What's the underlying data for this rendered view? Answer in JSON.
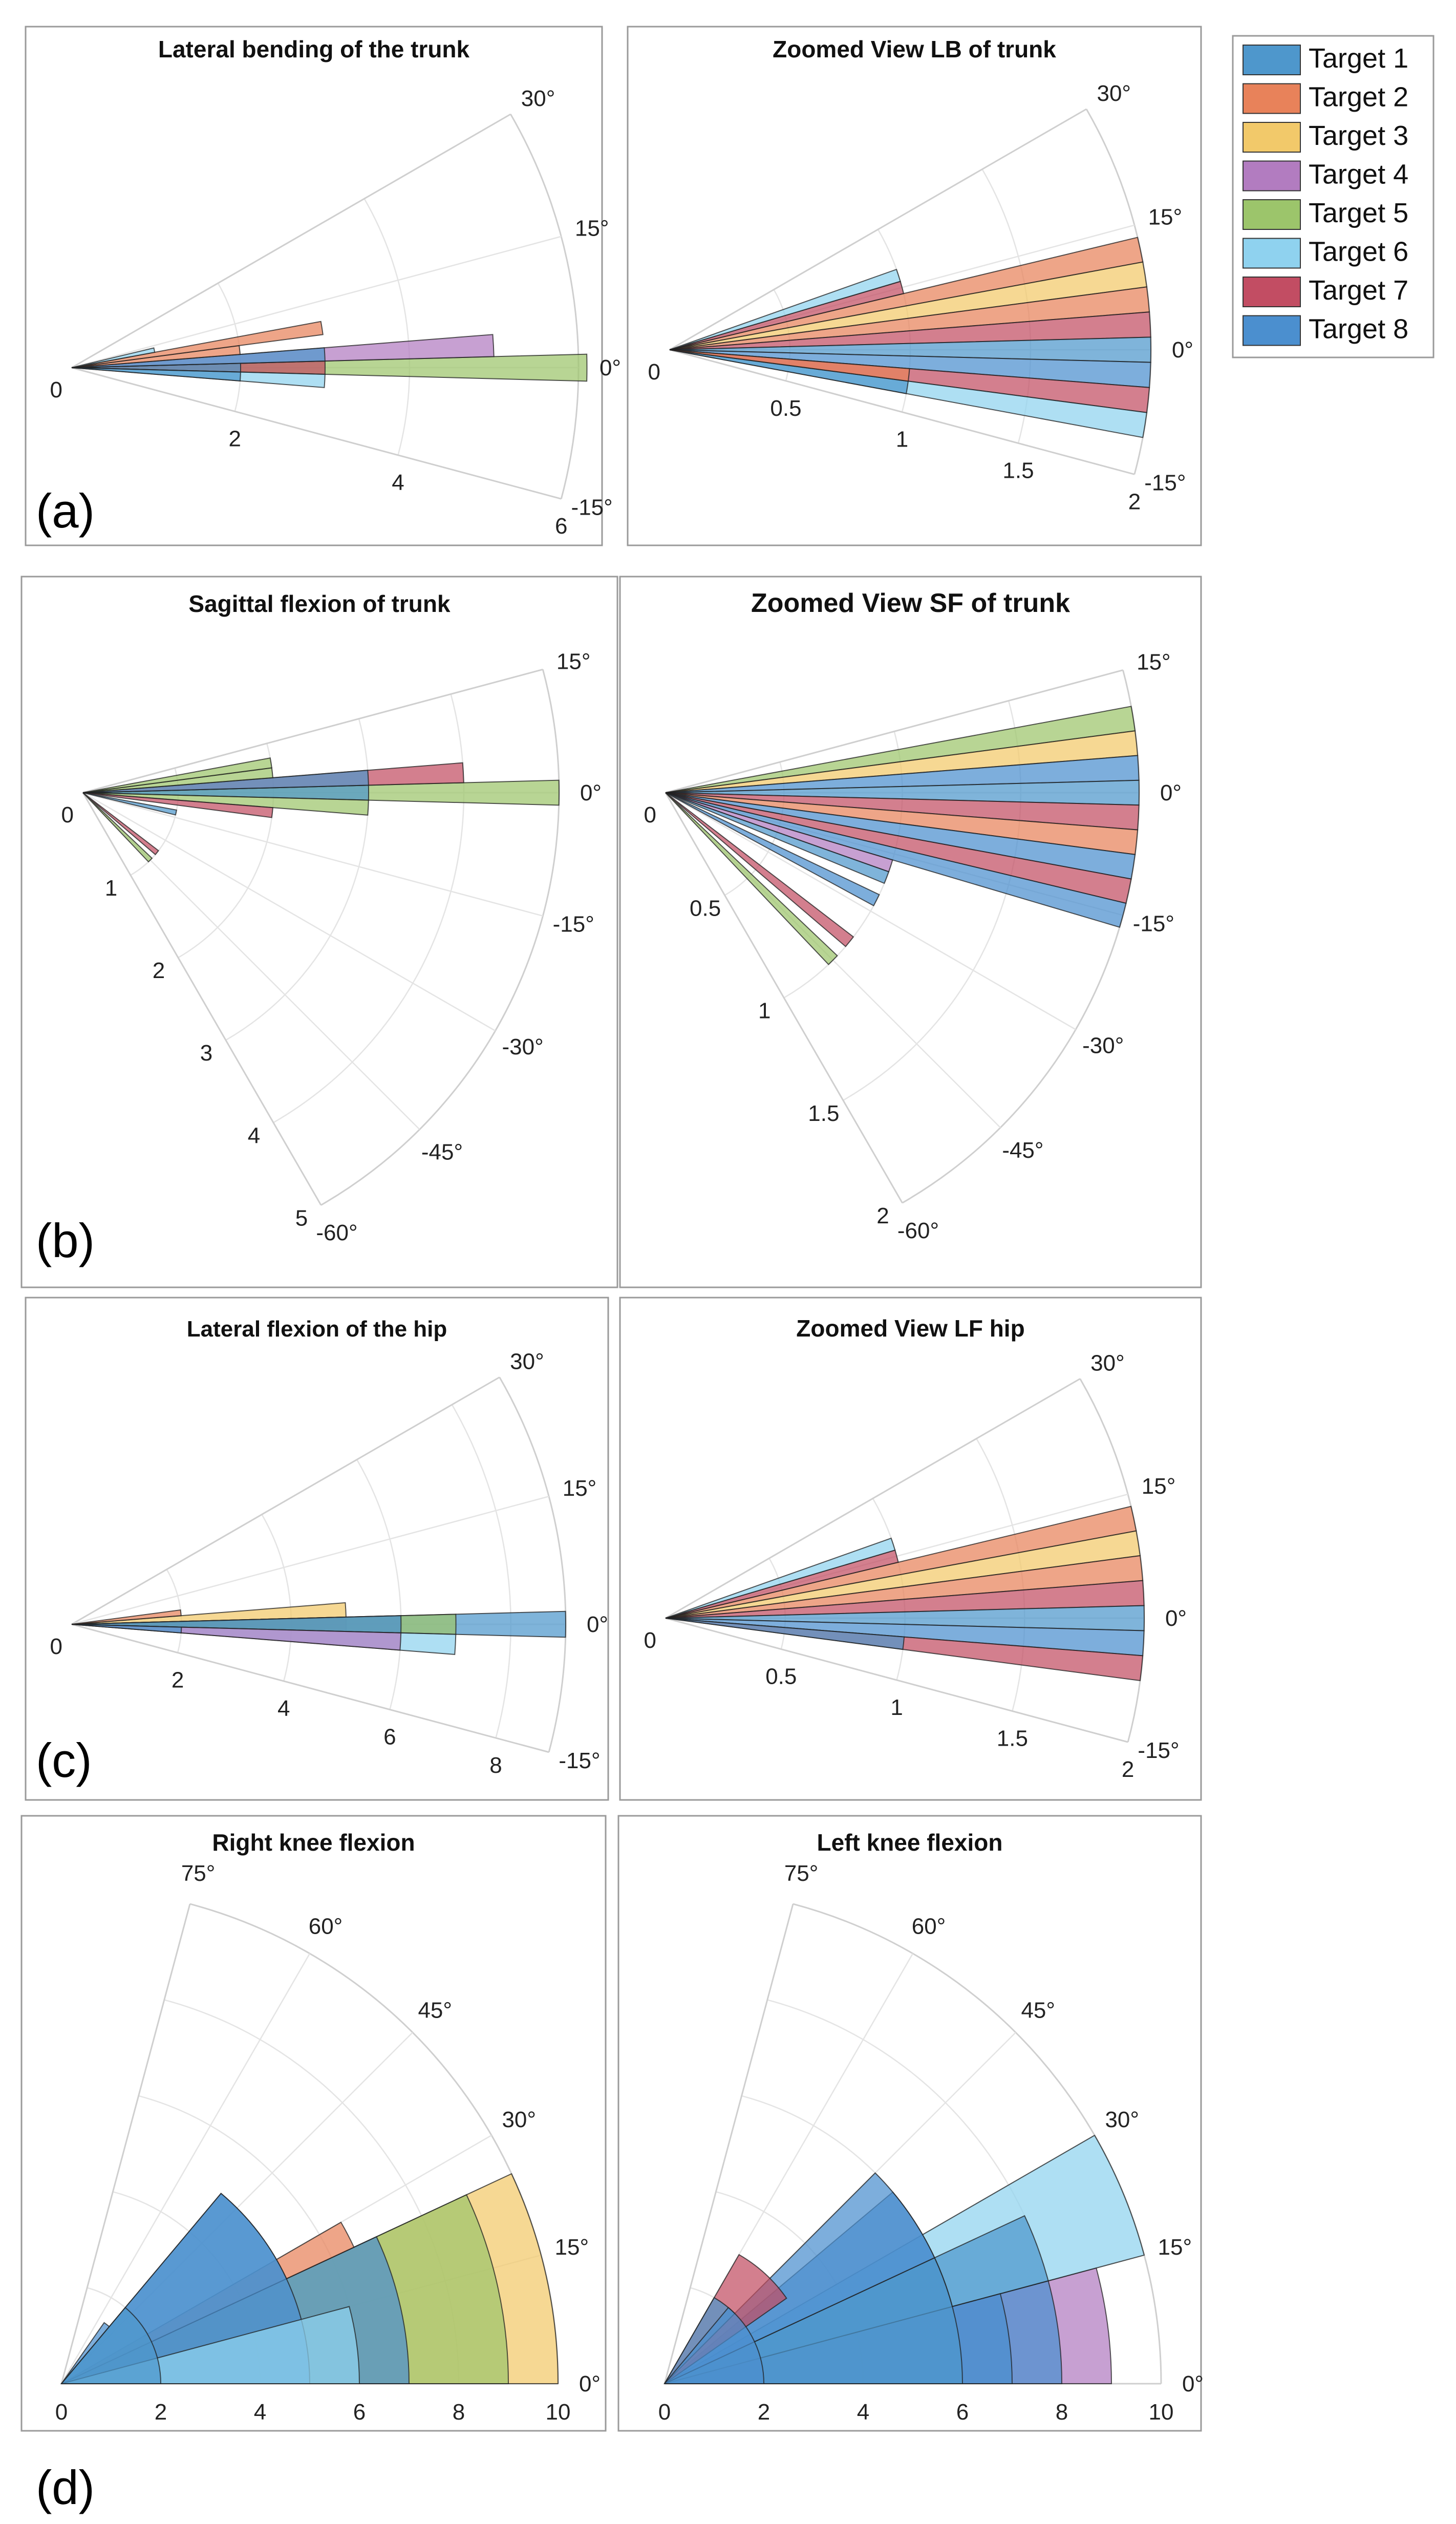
{
  "colors": {
    "Target 1": "#4e97cc",
    "Target 2": "#e8825a",
    "Target 3": "#f2c96a",
    "Target 4": "#b27cc0",
    "Target 5": "#9cc56b",
    "Target 6": "#8fd2ef",
    "Target 7": "#c24d63",
    "Target 8": "#4b8fcf",
    "grid": "#e4e4e4",
    "frame": "#9a9a9a"
  },
  "legend": [
    "Target 1",
    "Target 2",
    "Target 3",
    "Target 4",
    "Target 5",
    "Target 6",
    "Target 7",
    "Target 8"
  ],
  "panel_labels": [
    "(a)",
    "(b)",
    "(c)",
    "(d)"
  ],
  "chart_data": [
    {
      "id": "lb-trunk",
      "type": "polar-histogram",
      "title": "Lateral bending of the trunk",
      "theta_range_deg": [
        -15,
        30
      ],
      "r_max": 6,
      "r_ticks": [
        {
          "v": 2,
          "label": "2"
        },
        {
          "v": 4,
          "label": "4"
        },
        {
          "v": 6,
          "label": "6"
        }
      ],
      "theta_ticks": [
        {
          "deg": 30,
          "label": "30°"
        },
        {
          "deg": 15,
          "label": "15°"
        },
        {
          "deg": 0,
          "label": "0°"
        },
        {
          "deg": -15,
          "label": "-15°"
        }
      ],
      "bars": [
        {
          "t1": -1.5,
          "t2": 1.5,
          "r": 6.1,
          "target": "Target 5"
        },
        {
          "t1": -1.5,
          "t2": 1.5,
          "r": 3,
          "target": "Target 7"
        },
        {
          "t1": -1.5,
          "t2": 1.5,
          "r": 2,
          "target": "Target 1"
        },
        {
          "t1": 1.5,
          "t2": 4.5,
          "r": 5,
          "target": "Target 4"
        },
        {
          "t1": 1.5,
          "t2": 4.5,
          "r": 3,
          "target": "Target 1"
        },
        {
          "t1": 4.5,
          "t2": 7.5,
          "r": 2,
          "target": "Target 2"
        },
        {
          "t1": 7.5,
          "t2": 10.5,
          "r": 3,
          "target": "Target 2"
        },
        {
          "t1": 10.5,
          "t2": 13.5,
          "r": 1,
          "target": "Target 6"
        },
        {
          "t1": -4.5,
          "t2": -1.5,
          "r": 3,
          "target": "Target 6"
        },
        {
          "t1": -4.5,
          "t2": -1.5,
          "r": 2,
          "target": "Target 1"
        }
      ]
    },
    {
      "id": "lb-zoom",
      "type": "polar-histogram",
      "title": "Zoomed View LB of trunk",
      "theta_range_deg": [
        -15,
        30
      ],
      "r_max": 2,
      "r_ticks": [
        {
          "v": 0.5,
          "label": "0.5"
        },
        {
          "v": 1,
          "label": "1"
        },
        {
          "v": 1.5,
          "label": "1.5"
        },
        {
          "v": 2,
          "label": "2"
        }
      ],
      "theta_ticks": [
        {
          "deg": 30,
          "label": "30°"
        },
        {
          "deg": 15,
          "label": "15°"
        },
        {
          "deg": 0,
          "label": "0°"
        },
        {
          "deg": -15,
          "label": "-15°"
        }
      ],
      "bars": [
        {
          "t1": 10.5,
          "t2": 13.5,
          "r": 2,
          "target": "Target 2"
        },
        {
          "t1": 7.5,
          "t2": 10.5,
          "r": 2,
          "target": "Target 3"
        },
        {
          "t1": 4.5,
          "t2": 7.5,
          "r": 2,
          "target": "Target 2"
        },
        {
          "t1": 1.5,
          "t2": 4.5,
          "r": 2,
          "target": "Target 7"
        },
        {
          "t1": -1.5,
          "t2": 1.5,
          "r": 2,
          "target": "Target 1"
        },
        {
          "t1": -4.5,
          "t2": -1.5,
          "r": 2,
          "target": "Target 8"
        },
        {
          "t1": -7.5,
          "t2": -4.5,
          "r": 2,
          "target": "Target 7"
        },
        {
          "t1": -10.5,
          "t2": -7.5,
          "r": 2,
          "target": "Target 6"
        },
        {
          "t1": -10.5,
          "t2": -7.5,
          "r": 1,
          "target": "Target 1"
        },
        {
          "t1": -7.5,
          "t2": -4.5,
          "r": 1,
          "target": "Target 2"
        },
        {
          "t1": 13.5,
          "t2": 16.5,
          "r": 1,
          "target": "Target 7"
        },
        {
          "t1": 16.5,
          "t2": 19.5,
          "r": 1,
          "target": "Target 6"
        }
      ]
    },
    {
      "id": "sf-trunk",
      "type": "polar-histogram",
      "title": "Sagittal flexion of trunk",
      "theta_range_deg": [
        -60,
        15
      ],
      "r_max": 5,
      "r_ticks": [
        {
          "v": 1,
          "label": "1"
        },
        {
          "v": 2,
          "label": "2"
        },
        {
          "v": 3,
          "label": "3"
        },
        {
          "v": 4,
          "label": "4"
        },
        {
          "v": 5,
          "label": "5"
        }
      ],
      "theta_ticks": [
        {
          "deg": 15,
          "label": "15°"
        },
        {
          "deg": 0,
          "label": "0°"
        },
        {
          "deg": -15,
          "label": "-15°"
        },
        {
          "deg": -30,
          "label": "-30°"
        },
        {
          "deg": -45,
          "label": "-45°"
        },
        {
          "deg": -60,
          "label": "-60°"
        }
      ],
      "bars": [
        {
          "t1": -1.5,
          "t2": 1.5,
          "r": 5,
          "target": "Target 5"
        },
        {
          "t1": -1.5,
          "t2": 1.5,
          "r": 3,
          "target": "Target 1"
        },
        {
          "t1": 1.5,
          "t2": 4.5,
          "r": 4,
          "target": "Target 7"
        },
        {
          "t1": 1.5,
          "t2": 4.5,
          "r": 3,
          "target": "Target 1"
        },
        {
          "t1": 4.5,
          "t2": 7.5,
          "r": 2,
          "target": "Target 5"
        },
        {
          "t1": 7.5,
          "t2": 10.5,
          "r": 2,
          "target": "Target 5"
        },
        {
          "t1": -4.5,
          "t2": -1.5,
          "r": 3,
          "target": "Target 5"
        },
        {
          "t1": -7.5,
          "t2": -4.5,
          "r": 2,
          "target": "Target 7"
        },
        {
          "t1": -13.5,
          "t2": -10.5,
          "r": 1,
          "target": "Target 1"
        },
        {
          "t1": -40.5,
          "t2": -37.5,
          "r": 1,
          "target": "Target 7"
        },
        {
          "t1": -46.5,
          "t2": -43.5,
          "r": 1,
          "target": "Target 5"
        }
      ]
    },
    {
      "id": "sf-zoom",
      "type": "polar-histogram",
      "title": "Zoomed View SF of trunk",
      "theta_range_deg": [
        -60,
        15
      ],
      "r_max": 2,
      "r_ticks": [
        {
          "v": 0.5,
          "label": "0.5"
        },
        {
          "v": 1,
          "label": "1"
        },
        {
          "v": 1.5,
          "label": "1.5"
        },
        {
          "v": 2,
          "label": "2"
        }
      ],
      "theta_ticks": [
        {
          "deg": 15,
          "label": "15°"
        },
        {
          "deg": 0,
          "label": "0°"
        },
        {
          "deg": -15,
          "label": "-15°"
        },
        {
          "deg": -30,
          "label": "-30°"
        },
        {
          "deg": -45,
          "label": "-45°"
        },
        {
          "deg": -60,
          "label": "-60°"
        }
      ],
      "bars": [
        {
          "t1": 7.5,
          "t2": 10.5,
          "r": 2,
          "target": "Target 5"
        },
        {
          "t1": 4.5,
          "t2": 7.5,
          "r": 2,
          "target": "Target 3"
        },
        {
          "t1": 1.5,
          "t2": 4.5,
          "r": 2,
          "target": "Target 8"
        },
        {
          "t1": -1.5,
          "t2": 1.5,
          "r": 2,
          "target": "Target 1"
        },
        {
          "t1": -4.5,
          "t2": -1.5,
          "r": 2,
          "target": "Target 7"
        },
        {
          "t1": -7.5,
          "t2": -4.5,
          "r": 2,
          "target": "Target 2"
        },
        {
          "t1": -10.5,
          "t2": -7.5,
          "r": 2,
          "target": "Target 8"
        },
        {
          "t1": -13.5,
          "t2": -10.5,
          "r": 2,
          "target": "Target 7"
        },
        {
          "t1": -16.5,
          "t2": -13.5,
          "r": 2,
          "target": "Target 8"
        },
        {
          "t1": -19.5,
          "t2": -16.5,
          "r": 1,
          "target": "Target 4"
        },
        {
          "t1": -22.5,
          "t2": -19.5,
          "r": 1,
          "target": "Target 1"
        },
        {
          "t1": -28.5,
          "t2": -25.5,
          "r": 1,
          "target": "Target 8"
        },
        {
          "t1": -40.5,
          "t2": -37.5,
          "r": 1,
          "target": "Target 7"
        },
        {
          "t1": -46.5,
          "t2": -43.5,
          "r": 1,
          "target": "Target 5"
        }
      ]
    },
    {
      "id": "lf-hip",
      "type": "polar-histogram",
      "title": "Lateral flexion of the hip",
      "theta_range_deg": [
        -15,
        30
      ],
      "r_max": 9,
      "r_ticks": [
        {
          "v": 2,
          "label": "2"
        },
        {
          "v": 4,
          "label": "4"
        },
        {
          "v": 6,
          "label": "6"
        },
        {
          "v": 8,
          "label": "8"
        }
      ],
      "theta_ticks": [
        {
          "deg": 30,
          "label": "30°"
        },
        {
          "deg": 15,
          "label": "15°"
        },
        {
          "deg": 0,
          "label": "0°"
        },
        {
          "deg": -15,
          "label": "-15°"
        }
      ],
      "bars": [
        {
          "t1": 1.5,
          "t2": 4.5,
          "r": 5,
          "target": "Target 3"
        },
        {
          "t1": -1.5,
          "t2": 1.5,
          "r": 5,
          "target": "Target 7"
        },
        {
          "t1": -1.5,
          "t2": 1.5,
          "r": 9,
          "target": "Target 1"
        },
        {
          "t1": -1.5,
          "t2": 1.5,
          "r": 7,
          "target": "Target 5"
        },
        {
          "t1": -1.5,
          "t2": 1.5,
          "r": 6,
          "target": "Target 8"
        },
        {
          "t1": -4.5,
          "t2": -1.5,
          "r": 7,
          "target": "Target 6"
        },
        {
          "t1": -4.5,
          "t2": -1.5,
          "r": 6,
          "target": "Target 4"
        },
        {
          "t1": -4.5,
          "t2": -1.5,
          "r": 2,
          "target": "Target 1"
        },
        {
          "t1": 4.5,
          "t2": 7.5,
          "r": 2,
          "target": "Target 2"
        }
      ]
    },
    {
      "id": "lf-zoom",
      "type": "polar-histogram",
      "title": "Zoomed View LF hip",
      "theta_range_deg": [
        -15,
        30
      ],
      "r_max": 2,
      "r_ticks": [
        {
          "v": 0.5,
          "label": "0.5"
        },
        {
          "v": 1,
          "label": "1"
        },
        {
          "v": 1.5,
          "label": "1.5"
        },
        {
          "v": 2,
          "label": "2"
        }
      ],
      "theta_ticks": [
        {
          "deg": 30,
          "label": "30°"
        },
        {
          "deg": 15,
          "label": "15°"
        },
        {
          "deg": 0,
          "label": "0°"
        },
        {
          "deg": -15,
          "label": "-15°"
        }
      ],
      "bars": [
        {
          "t1": 10.5,
          "t2": 13.5,
          "r": 2,
          "target": "Target 2"
        },
        {
          "t1": 7.5,
          "t2": 10.5,
          "r": 2,
          "target": "Target 3"
        },
        {
          "t1": 4.5,
          "t2": 7.5,
          "r": 2,
          "target": "Target 2"
        },
        {
          "t1": 1.5,
          "t2": 4.5,
          "r": 2,
          "target": "Target 7"
        },
        {
          "t1": -1.5,
          "t2": 1.5,
          "r": 2,
          "target": "Target 1"
        },
        {
          "t1": -4.5,
          "t2": -1.5,
          "r": 2,
          "target": "Target 8"
        },
        {
          "t1": -7.5,
          "t2": -4.5,
          "r": 2,
          "target": "Target 7"
        },
        {
          "t1": -7.5,
          "t2": -4.5,
          "r": 1,
          "target": "Target 1"
        },
        {
          "t1": 13.5,
          "t2": 16.5,
          "r": 1,
          "target": "Target 7"
        },
        {
          "t1": 16.5,
          "t2": 19.5,
          "r": 1,
          "target": "Target 6"
        }
      ]
    },
    {
      "id": "rk",
      "type": "polar-histogram",
      "title": "Right knee flexion",
      "theta_range_deg": [
        0,
        75
      ],
      "r_max": 10,
      "r_ticks": [
        {
          "v": 0,
          "label": "0"
        },
        {
          "v": 2,
          "label": "2"
        },
        {
          "v": 4,
          "label": "4"
        },
        {
          "v": 6,
          "label": "6"
        },
        {
          "v": 8,
          "label": "8"
        },
        {
          "v": 10,
          "label": "10"
        }
      ],
      "theta_ticks": [
        {
          "deg": 75,
          "label": "75°"
        },
        {
          "deg": 60,
          "label": "60°"
        },
        {
          "deg": 45,
          "label": "45°"
        },
        {
          "deg": 30,
          "label": "30°"
        },
        {
          "deg": 15,
          "label": "15°"
        },
        {
          "deg": 0,
          "label": "0°"
        }
      ],
      "bars": [
        {
          "t1": 0,
          "t2": 25,
          "r": 10,
          "target": "Target 3"
        },
        {
          "t1": 0,
          "t2": 25,
          "r": 9,
          "target": "Target 5"
        },
        {
          "t1": 0,
          "t2": 25,
          "r": 7,
          "target": "Target 8"
        },
        {
          "t1": 25,
          "t2": 30,
          "r": 6.5,
          "target": "Target 2"
        },
        {
          "t1": 25,
          "t2": 50,
          "r": 5,
          "target": "Target 1"
        },
        {
          "t1": 0,
          "t2": 50,
          "r": 5,
          "target": "Target 8"
        },
        {
          "t1": 0,
          "t2": 15,
          "r": 6,
          "target": "Target 6"
        },
        {
          "t1": 50,
          "t2": 55,
          "r": 1.5,
          "target": "Target 8"
        },
        {
          "t1": 0,
          "t2": 50,
          "r": 2,
          "target": "Target 1"
        }
      ]
    },
    {
      "id": "lk",
      "type": "polar-histogram",
      "title": "Left knee flexion",
      "theta_range_deg": [
        0,
        75
      ],
      "r_max": 10,
      "r_ticks": [
        {
          "v": 0,
          "label": "0"
        },
        {
          "v": 2,
          "label": "2"
        },
        {
          "v": 4,
          "label": "4"
        },
        {
          "v": 6,
          "label": "6"
        },
        {
          "v": 8,
          "label": "8"
        },
        {
          "v": 10,
          "label": "10"
        }
      ],
      "theta_ticks": [
        {
          "deg": 75,
          "label": "75°"
        },
        {
          "deg": 60,
          "label": "60°"
        },
        {
          "deg": 45,
          "label": "45°"
        },
        {
          "deg": 30,
          "label": "30°"
        },
        {
          "deg": 15,
          "label": "15°"
        },
        {
          "deg": 0,
          "label": "0°"
        }
      ],
      "bars": [
        {
          "t1": 0,
          "t2": 15,
          "r": 9,
          "target": "Target 4"
        },
        {
          "t1": 15,
          "t2": 30,
          "r": 10,
          "target": "Target 6"
        },
        {
          "t1": 0,
          "t2": 15,
          "r": 8,
          "target": "Target 8"
        },
        {
          "t1": 15,
          "t2": 25,
          "r": 8,
          "target": "Target 1"
        },
        {
          "t1": 0,
          "t2": 15,
          "r": 7,
          "target": "Target 8"
        },
        {
          "t1": 15,
          "t2": 40,
          "r": 6,
          "target": "Target 8"
        },
        {
          "t1": 0,
          "t2": 25,
          "r": 6,
          "target": "Target 1"
        },
        {
          "t1": 25,
          "t2": 45,
          "r": 6,
          "target": "Target 8"
        },
        {
          "t1": 35,
          "t2": 60,
          "r": 3,
          "target": "Target 7"
        },
        {
          "t1": 45,
          "t2": 60,
          "r": 2,
          "target": "Target 1"
        },
        {
          "t1": 0,
          "t2": 50,
          "r": 2,
          "target": "Target 8"
        }
      ]
    }
  ]
}
